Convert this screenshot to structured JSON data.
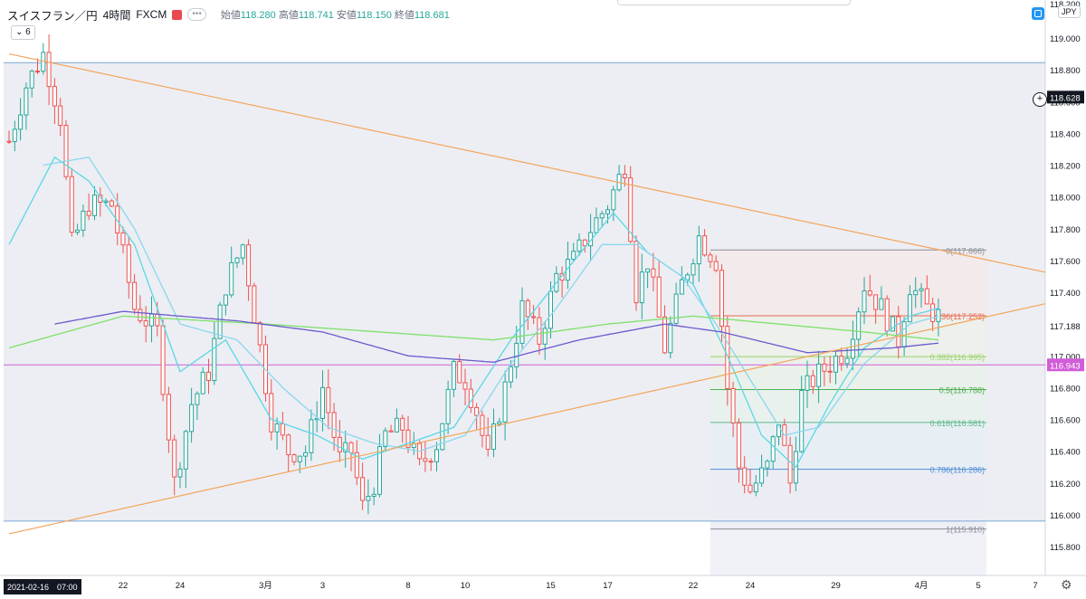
{
  "header": {
    "symbol": "スイスフラン／円",
    "interval": "4時間",
    "exchange": "FXCM",
    "open_label": "始値",
    "open": "118.280",
    "high_label": "高値",
    "high": "118.741",
    "low_label": "安値",
    "low": "118.150",
    "close_label": "終値",
    "close": "118.681",
    "indicator_toggle": "⌄ 6",
    "currency_button": "JPY"
  },
  "colors": {
    "up_candle": "#26a69a",
    "down_candle": "#ef5350",
    "trendline": "#f5a55a",
    "ma_fast": "#5ad7e6",
    "ma_slow": "#8ad7ee",
    "ma_green": "#7ee06a",
    "ma_purple": "#6a5acd",
    "hline_magenta": "#d15cd8",
    "range_box": "#7aa6d6"
  },
  "chart_data": {
    "type": "candlestick",
    "symbol": "CHF/JPY",
    "timeframe": "4h",
    "y_axis": {
      "range": [
        115.7,
        119.25
      ],
      "ticks": [
        "119.000",
        "118.800",
        "118.600",
        "118.400",
        "118.200",
        "118.000",
        "117.800",
        "117.600",
        "117.400",
        "117.188",
        "117.000",
        "116.800",
        "116.600",
        "116.400",
        "116.200",
        "116.000",
        "115.800"
      ],
      "top_partial_tick": "118.200"
    },
    "x_axis": {
      "ticks": [
        {
          "label": "22",
          "bar": 20
        },
        {
          "label": "24",
          "bar": 30
        },
        {
          "label": "3月",
          "bar": 45
        },
        {
          "label": "3",
          "bar": 55
        },
        {
          "label": "8",
          "bar": 70
        },
        {
          "label": "10",
          "bar": 80
        },
        {
          "label": "15",
          "bar": 95
        },
        {
          "label": "17",
          "bar": 105
        },
        {
          "label": "22",
          "bar": 120
        },
        {
          "label": "24",
          "bar": 130
        },
        {
          "label": "29",
          "bar": 145
        },
        {
          "label": "4月",
          "bar": 160
        },
        {
          "label": "5",
          "bar": 170
        },
        {
          "label": "7",
          "bar": 180
        }
      ],
      "current_datetime_label": "2021-02-16　07:00",
      "bar_count_visible": 172,
      "bars_per_day": 5
    },
    "price_labels": [
      {
        "text": "118.628",
        "value": 118.628,
        "style": "dark"
      },
      {
        "text": "116.943",
        "value": 116.943,
        "style": "magenta"
      }
    ],
    "keypoints": [
      [
        0,
        118.35
      ],
      [
        3,
        118.7
      ],
      [
        6,
        118.9
      ],
      [
        9,
        118.5
      ],
      [
        11,
        117.7
      ],
      [
        14,
        117.95
      ],
      [
        18,
        117.95
      ],
      [
        22,
        117.3
      ],
      [
        26,
        117.15
      ],
      [
        29,
        116.2
      ],
      [
        32,
        116.7
      ],
      [
        35,
        116.9
      ],
      [
        38,
        117.45
      ],
      [
        41,
        117.7
      ],
      [
        44,
        117.05
      ],
      [
        46,
        116.6
      ],
      [
        49,
        116.4
      ],
      [
        52,
        116.4
      ],
      [
        55,
        116.8
      ],
      [
        58,
        116.35
      ],
      [
        60,
        116.4
      ],
      [
        62,
        116.05
      ],
      [
        64,
        116.2
      ],
      [
        66,
        116.5
      ],
      [
        69,
        116.55
      ],
      [
        72,
        116.3
      ],
      [
        75,
        116.45
      ],
      [
        78,
        116.9
      ],
      [
        80,
        116.85
      ],
      [
        82,
        116.65
      ],
      [
        84,
        116.35
      ],
      [
        87,
        116.8
      ],
      [
        90,
        117.3
      ],
      [
        93,
        117.1
      ],
      [
        96,
        117.5
      ],
      [
        99,
        117.6
      ],
      [
        102,
        117.8
      ],
      [
        105,
        117.95
      ],
      [
        108,
        118.2
      ],
      [
        110,
        117.4
      ],
      [
        112,
        117.6
      ],
      [
        115,
        117.05
      ],
      [
        118,
        117.45
      ],
      [
        121,
        117.75
      ],
      [
        124,
        117.6
      ],
      [
        126,
        116.8
      ],
      [
        128,
        116.3
      ],
      [
        130,
        116.15
      ],
      [
        133,
        116.3
      ],
      [
        135,
        116.6
      ],
      [
        137,
        116.2
      ],
      [
        139,
        116.75
      ],
      [
        141,
        116.85
      ],
      [
        144,
        116.95
      ],
      [
        147,
        117.05
      ],
      [
        150,
        117.45
      ],
      [
        153,
        117.3
      ],
      [
        156,
        117.1
      ],
      [
        158,
        117.45
      ],
      [
        161,
        117.3
      ],
      [
        163,
        117.25
      ]
    ],
    "moving_averages": [
      {
        "name": "ma_fast",
        "keypoints": [
          [
            0,
            117.7
          ],
          [
            8,
            118.25
          ],
          [
            14,
            118.1
          ],
          [
            22,
            117.7
          ],
          [
            30,
            116.9
          ],
          [
            38,
            117.1
          ],
          [
            46,
            116.6
          ],
          [
            54,
            116.5
          ],
          [
            62,
            116.35
          ],
          [
            70,
            116.45
          ],
          [
            78,
            116.55
          ],
          [
            88,
            117.1
          ],
          [
            98,
            117.55
          ],
          [
            106,
            117.9
          ],
          [
            112,
            117.65
          ],
          [
            120,
            117.45
          ],
          [
            126,
            117.0
          ],
          [
            132,
            116.5
          ],
          [
            138,
            116.3
          ],
          [
            144,
            116.7
          ],
          [
            150,
            117.05
          ],
          [
            158,
            117.25
          ],
          [
            163,
            117.3
          ]
        ]
      },
      {
        "name": "ma_slow",
        "keypoints": [
          [
            6,
            118.2
          ],
          [
            14,
            118.25
          ],
          [
            22,
            117.8
          ],
          [
            30,
            117.2
          ],
          [
            40,
            117.1
          ],
          [
            48,
            116.8
          ],
          [
            56,
            116.55
          ],
          [
            64,
            116.45
          ],
          [
            72,
            116.4
          ],
          [
            80,
            116.5
          ],
          [
            88,
            116.95
          ],
          [
            96,
            117.3
          ],
          [
            104,
            117.7
          ],
          [
            110,
            117.7
          ],
          [
            118,
            117.5
          ],
          [
            124,
            117.2
          ],
          [
            130,
            116.85
          ],
          [
            136,
            116.5
          ],
          [
            142,
            116.55
          ],
          [
            150,
            116.95
          ],
          [
            158,
            117.2
          ],
          [
            163,
            117.25
          ]
        ]
      },
      {
        "name": "ma_green",
        "keypoints": [
          [
            0,
            117.05
          ],
          [
            20,
            117.25
          ],
          [
            45,
            117.2
          ],
          [
            65,
            117.15
          ],
          [
            85,
            117.1
          ],
          [
            105,
            117.2
          ],
          [
            120,
            117.25
          ],
          [
            135,
            117.2
          ],
          [
            150,
            117.15
          ],
          [
            163,
            117.1
          ]
        ]
      },
      {
        "name": "ma_purple",
        "keypoints": [
          [
            8,
            117.2
          ],
          [
            20,
            117.28
          ],
          [
            40,
            117.22
          ],
          [
            55,
            117.15
          ],
          [
            70,
            117.0
          ],
          [
            85,
            116.96
          ],
          [
            100,
            117.1
          ],
          [
            115,
            117.2
          ],
          [
            125,
            117.15
          ],
          [
            140,
            117.02
          ],
          [
            155,
            117.05
          ],
          [
            163,
            117.08
          ]
        ]
      }
    ],
    "trendlines": [
      {
        "name": "upper",
        "from": {
          "bar": 0,
          "price": 118.9
        },
        "to": {
          "bar": 172,
          "price": 117.6
        }
      },
      {
        "name": "lower",
        "from": {
          "bar": 0,
          "price": 115.88
        },
        "to": {
          "bar": 172,
          "price": 117.25
        }
      }
    ],
    "horizontal_lines": [
      {
        "name": "range_top",
        "price": 118.845,
        "color": "#7aa6d6"
      },
      {
        "name": "range_bottom",
        "price": 115.96,
        "color": "#7aa6d6"
      },
      {
        "name": "magenta",
        "price": 116.943,
        "color": "#d15cd8"
      }
    ],
    "range_box": {
      "from_bar": 0,
      "to_bar": 172,
      "top": 118.845,
      "bottom": 115.96
    },
    "fibonacci": {
      "from_bar": 123,
      "to_bar": 172,
      "levels": [
        {
          "ratio": "0",
          "price": 117.666,
          "label": "0(117.666)",
          "color": "#8a8f98"
        },
        {
          "ratio": "0.236",
          "price": 117.252,
          "label": "0.236(117.252)",
          "color": "#e8684f"
        },
        {
          "ratio": "0.382",
          "price": 116.995,
          "label": "0.382(116.995)",
          "color": "#9bd36a"
        },
        {
          "ratio": "0.5",
          "price": 116.788,
          "label": "0.5(116.788)",
          "color": "#4caf50"
        },
        {
          "ratio": "0.618",
          "price": 116.581,
          "label": "0.618(116.581)",
          "color": "#5cb88a"
        },
        {
          "ratio": "0.786",
          "price": 116.286,
          "label": "0.786(116.286)",
          "color": "#4f8fd6"
        },
        {
          "ratio": "1",
          "price": 115.91,
          "label": "1(115.910)",
          "color": "#8a8f98"
        }
      ]
    }
  }
}
